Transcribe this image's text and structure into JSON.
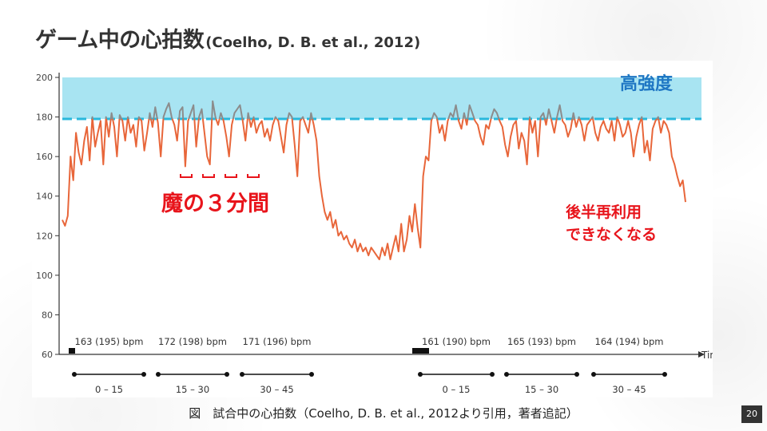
{
  "slide": {
    "title": "ゲーム中の心拍数",
    "title_cite": "(Coelho, D. B. et al., 2012)",
    "caption": "図　試合中の心拍数（Coelho, D. B. et al., 2012より引用，著者追記）",
    "page_number": "20"
  },
  "annotations": {
    "high_intensity": "高強度",
    "magic_three": "魔の３分間",
    "second_half_line1": "後半再利用",
    "second_half_line2": "できなくなる"
  },
  "colors": {
    "hr_line": "#e8663a",
    "above_threshold_line": "#8c8c8c",
    "band_fill": "#a8e4f2",
    "threshold_dash": "#29b8dc",
    "annotation_red": "#e8141b",
    "annotation_blue": "#1f77c4"
  },
  "chart_data": {
    "type": "line",
    "xlabel": "Time",
    "ylabel": "",
    "ylim": [
      60,
      200
    ],
    "yticks": [
      60,
      80,
      100,
      120,
      140,
      160,
      180,
      200
    ],
    "high_intensity_band": [
      179,
      200
    ],
    "threshold": 179,
    "series": [
      {
        "values": [
          128,
          125,
          130,
          160,
          148,
          172,
          162,
          156,
          168,
          175,
          158,
          180,
          165,
          172,
          178,
          156,
          180,
          170,
          182,
          175,
          160,
          181,
          178,
          168,
          180,
          172,
          176,
          165,
          180,
          178,
          163,
          172,
          182,
          175,
          185,
          177,
          160,
          180,
          184,
          187,
          180,
          176,
          168,
          183,
          185,
          155,
          178,
          182,
          186,
          165,
          180,
          184,
          172,
          160,
          156,
          188,
          180,
          176,
          182,
          178,
          170,
          160,
          176,
          182,
          184,
          186,
          178,
          168,
          182,
          175,
          180,
          172,
          176,
          178,
          170,
          174,
          168,
          176,
          180,
          178,
          170,
          162,
          176,
          182,
          180,
          166,
          150,
          178,
          180,
          176,
          172,
          182,
          176,
          168,
          150,
          140,
          132,
          128,
          132,
          124,
          128,
          120,
          122,
          118,
          120,
          116,
          114,
          118,
          112,
          116,
          112,
          114,
          110,
          114,
          112,
          110,
          108,
          114,
          110,
          116,
          108,
          114,
          120,
          112,
          126,
          112,
          118,
          130,
          122,
          136,
          124,
          114,
          150,
          160,
          158,
          178,
          182,
          180,
          172,
          176,
          168,
          178,
          182,
          180,
          186,
          178,
          174,
          182,
          176,
          186,
          182,
          178,
          176,
          170,
          166,
          176,
          174,
          180,
          184,
          182,
          178,
          175,
          166,
          160,
          170,
          176,
          178,
          164,
          172,
          168,
          156,
          180,
          172,
          178,
          160,
          180,
          182,
          176,
          184,
          178,
          172,
          180,
          186,
          178,
          176,
          170,
          174,
          182,
          175,
          180,
          176,
          168,
          176,
          178,
          180,
          172,
          168,
          175,
          178,
          174,
          172,
          178,
          168,
          180,
          176,
          170,
          172,
          178,
          172,
          160,
          170,
          176,
          180,
          162,
          168,
          158,
          174,
          178,
          180,
          172,
          178,
          176,
          172,
          160,
          156,
          150,
          145,
          148,
          137
        ],
        "segments": [
          {
            "label": "0 – 15",
            "bpm_text": "163 (195) bpm"
          },
          {
            "label": "15 – 30",
            "bpm_text": "172 (198) bpm"
          },
          {
            "label": "30 – 45",
            "bpm_text": "171 (196) bpm"
          },
          {
            "label": "0 – 15",
            "bpm_text": "161 (190) bpm"
          },
          {
            "label": "15 – 30",
            "bpm_text": "165 (193) bpm"
          },
          {
            "label": "30 – 45",
            "bpm_text": "164 (194) bpm"
          }
        ]
      }
    ]
  }
}
